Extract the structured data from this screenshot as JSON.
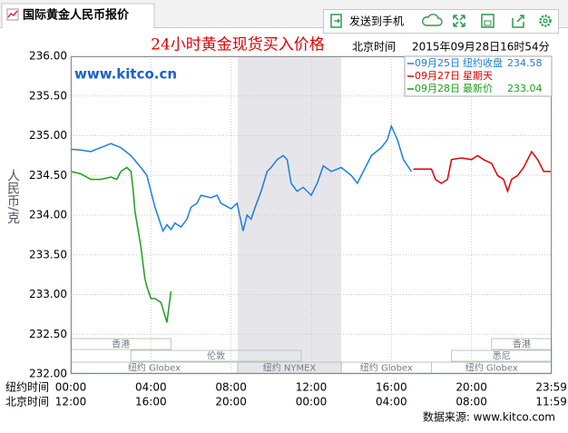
{
  "tab": {
    "title": "国际黄金人民币报价"
  },
  "toolbar": {
    "send": "发送到手机"
  },
  "watermark": "www.kitco.cn",
  "footer": "数据来源: www.kitco.com",
  "chart_data": {
    "type": "line",
    "title": "24小时黄金现货买入价格",
    "time_label": "北京时间",
    "timestamp": "2015年09月28日16时54分",
    "y_label": "人民币/克",
    "x_row_label": "纽约时间",
    "x2_row_label": "北京时间",
    "xlim": [
      0,
      24
    ],
    "ylim": [
      232,
      236
    ],
    "yticks": [
      {
        "value": 232,
        "label": "232.00"
      },
      {
        "value": 232.5,
        "label": "232.50"
      },
      {
        "value": 233,
        "label": "233.00"
      },
      {
        "value": 233.5,
        "label": "233.50"
      },
      {
        "value": 234,
        "label": "234.00"
      },
      {
        "value": 234.5,
        "label": "234.50"
      },
      {
        "value": 235,
        "label": "235.00"
      },
      {
        "value": 235.5,
        "label": "235.50"
      },
      {
        "value": 236,
        "label": "236.00"
      }
    ],
    "xticks": [
      {
        "value": 0,
        "label": "00:00"
      },
      {
        "value": 4,
        "label": "04:00"
      },
      {
        "value": 8,
        "label": "08:00"
      },
      {
        "value": 12,
        "label": "12:00"
      },
      {
        "value": 16,
        "label": "16:00"
      },
      {
        "value": 20,
        "label": "20:00"
      },
      {
        "value": 23.983,
        "label": "23:59"
      }
    ],
    "x2ticks": [
      {
        "value": 0,
        "label": "12:00"
      },
      {
        "value": 4,
        "label": "16:00"
      },
      {
        "value": 8,
        "label": "20:00"
      },
      {
        "value": 12,
        "label": "00:00"
      },
      {
        "value": 16,
        "label": "04:00"
      },
      {
        "value": 20,
        "label": "08:00"
      },
      {
        "value": 23.983,
        "label": "11:59"
      }
    ],
    "grid": true,
    "highlight": [
      8.33,
      13.5
    ],
    "sessions": [
      {
        "label": "香港",
        "start": 0,
        "end": 5,
        "row": 0
      },
      {
        "label": "香港",
        "start": 21,
        "end": 24,
        "row": 0
      },
      {
        "label": "伦敦",
        "start": 3,
        "end": 11.5,
        "row": 1
      },
      {
        "label": "悉尼",
        "start": 19,
        "end": 24,
        "row": 1
      },
      {
        "label": "纽约 Globex",
        "start": 0,
        "end": 8.33,
        "row": 2
      },
      {
        "label": "纽约 NYMEX",
        "start": 8.33,
        "end": 13.5,
        "row": 2
      },
      {
        "label": "纽约 Globex",
        "start": 13.5,
        "end": 18,
        "row": 2
      },
      {
        "label": "纽约 Globex",
        "start": 18,
        "end": 24,
        "row": 2
      }
    ],
    "series": [
      {
        "name": "09月25日",
        "note": "纽约收盘",
        "last": 234.58,
        "color": "#1a7fe0",
        "x": [
          0,
          0.5,
          1,
          1.5,
          2,
          2.5,
          3,
          3.5,
          3.8,
          4,
          4.2,
          4.4,
          4.6,
          4.8,
          5,
          5.2,
          5.5,
          5.8,
          6,
          6.3,
          6.5,
          7,
          7.3,
          7.5,
          8,
          8.3,
          8.6,
          8.8,
          9,
          9.2,
          9.5,
          9.8,
          10,
          10.3,
          10.6,
          10.8,
          11,
          11.3,
          11.6,
          12,
          12.3,
          12.6,
          13,
          13.5,
          14,
          14.3,
          14.6,
          15,
          15.5,
          15.8,
          16,
          16.3,
          16.6,
          17
        ],
        "values": [
          234.83,
          234.82,
          234.8,
          234.85,
          234.9,
          234.85,
          234.75,
          234.6,
          234.5,
          234.3,
          234.1,
          233.95,
          233.8,
          233.88,
          233.82,
          233.9,
          233.85,
          233.95,
          234.1,
          234.15,
          234.25,
          234.22,
          234.25,
          234.15,
          234.08,
          234.15,
          233.8,
          234.0,
          233.95,
          234.1,
          234.3,
          234.55,
          234.6,
          234.7,
          234.75,
          234.7,
          234.4,
          234.3,
          234.35,
          234.25,
          234.4,
          234.62,
          234.55,
          234.6,
          234.5,
          234.4,
          234.55,
          234.75,
          234.85,
          234.95,
          235.12,
          234.95,
          234.7,
          234.55
        ]
      },
      {
        "name": "09月27日",
        "note": "星期天",
        "color": "#e00000",
        "x": [
          17.1,
          18,
          18.2,
          18.5,
          18.8,
          19,
          19.5,
          20,
          20.3,
          20.6,
          21,
          21.3,
          21.6,
          21.8,
          22,
          22.3,
          22.6,
          23,
          23.3,
          23.6,
          24
        ],
        "values": [
          234.58,
          234.58,
          234.45,
          234.4,
          234.45,
          234.7,
          234.72,
          234.7,
          234.75,
          234.7,
          234.65,
          234.5,
          234.45,
          234.3,
          234.45,
          234.5,
          234.6,
          234.8,
          234.7,
          234.55,
          234.55
        ]
      },
      {
        "name": "09月28日",
        "note": "最新价",
        "last": 233.04,
        "color": "#1aa01a",
        "x": [
          0,
          0.5,
          1,
          1.5,
          2,
          2.3,
          2.5,
          2.8,
          3,
          3.1,
          3.2,
          3.3,
          3.5,
          3.7,
          3.8,
          4,
          4.2,
          4.5,
          4.8,
          5
        ],
        "values": [
          234.55,
          234.52,
          234.45,
          234.45,
          234.48,
          234.45,
          234.55,
          234.6,
          234.55,
          234.35,
          234.05,
          233.9,
          233.6,
          233.2,
          233.1,
          232.95,
          232.95,
          232.9,
          232.65,
          233.04
        ]
      }
    ]
  }
}
